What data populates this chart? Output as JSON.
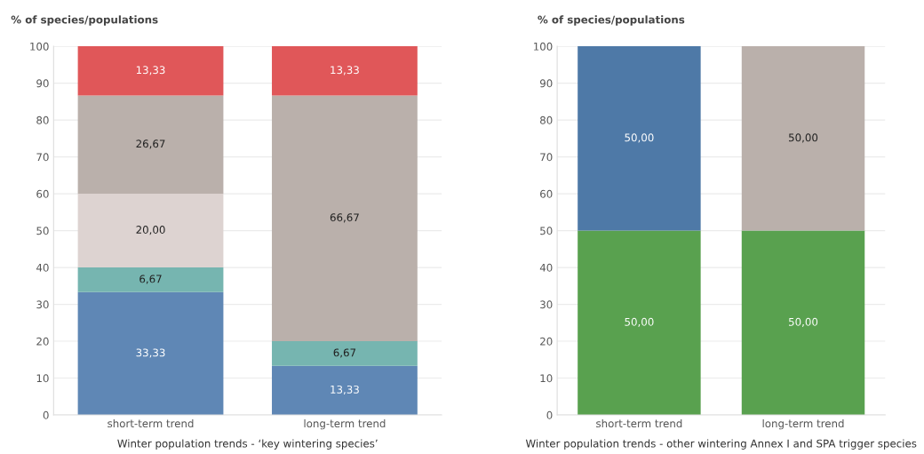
{
  "chart_data": [
    {
      "type": "bar",
      "stacked": true,
      "ylabel": "% of species/populations",
      "xlabel": "Winter population trends - ‘key wintering species’",
      "categories": [
        "short-term trend",
        "long-term trend"
      ],
      "ylim": [
        0,
        100
      ],
      "yticks": [
        0,
        10,
        20,
        30,
        40,
        50,
        60,
        70,
        80,
        90,
        100
      ],
      "grid": "y",
      "series": [
        {
          "color": "#5f87b5",
          "values": [
            33.33,
            13.33
          ],
          "value_labels": [
            "33,33",
            "13,33"
          ]
        },
        {
          "color": "#76b5b0",
          "values": [
            6.67,
            6.67
          ],
          "value_labels": [
            "6,67",
            "6,67"
          ]
        },
        {
          "color": "#ddd3d1",
          "values": [
            20.0,
            null
          ],
          "value_labels": [
            "20,00",
            null
          ]
        },
        {
          "color": "#bab0ab",
          "values": [
            26.67,
            66.67
          ],
          "value_labels": [
            "26,67",
            "66,67"
          ]
        },
        {
          "color": "#e05759",
          "values": [
            13.33,
            13.33
          ],
          "value_labels": [
            "13,33",
            "13,33"
          ]
        }
      ]
    },
    {
      "type": "bar",
      "stacked": true,
      "ylabel": "% of species/populations",
      "xlabel": "Winter population trends - other wintering Annex I and SPA trigger species",
      "categories": [
        "short-term trend",
        "long-term trend"
      ],
      "ylim": [
        0,
        100
      ],
      "yticks": [
        0,
        10,
        20,
        30,
        40,
        50,
        60,
        70,
        80,
        90,
        100
      ],
      "grid": "y",
      "series": [
        {
          "color": "#59a14f",
          "values": [
            50.0,
            50.0
          ],
          "value_labels": [
            "50,00",
            "50,00"
          ]
        },
        {
          "color": "#4e79a7",
          "values": [
            50.0,
            null
          ],
          "value_labels": [
            "50,00",
            null
          ]
        },
        {
          "color": "#bab0ab",
          "values": [
            null,
            50.0
          ],
          "value_labels": [
            null,
            "50,00"
          ]
        }
      ]
    }
  ]
}
